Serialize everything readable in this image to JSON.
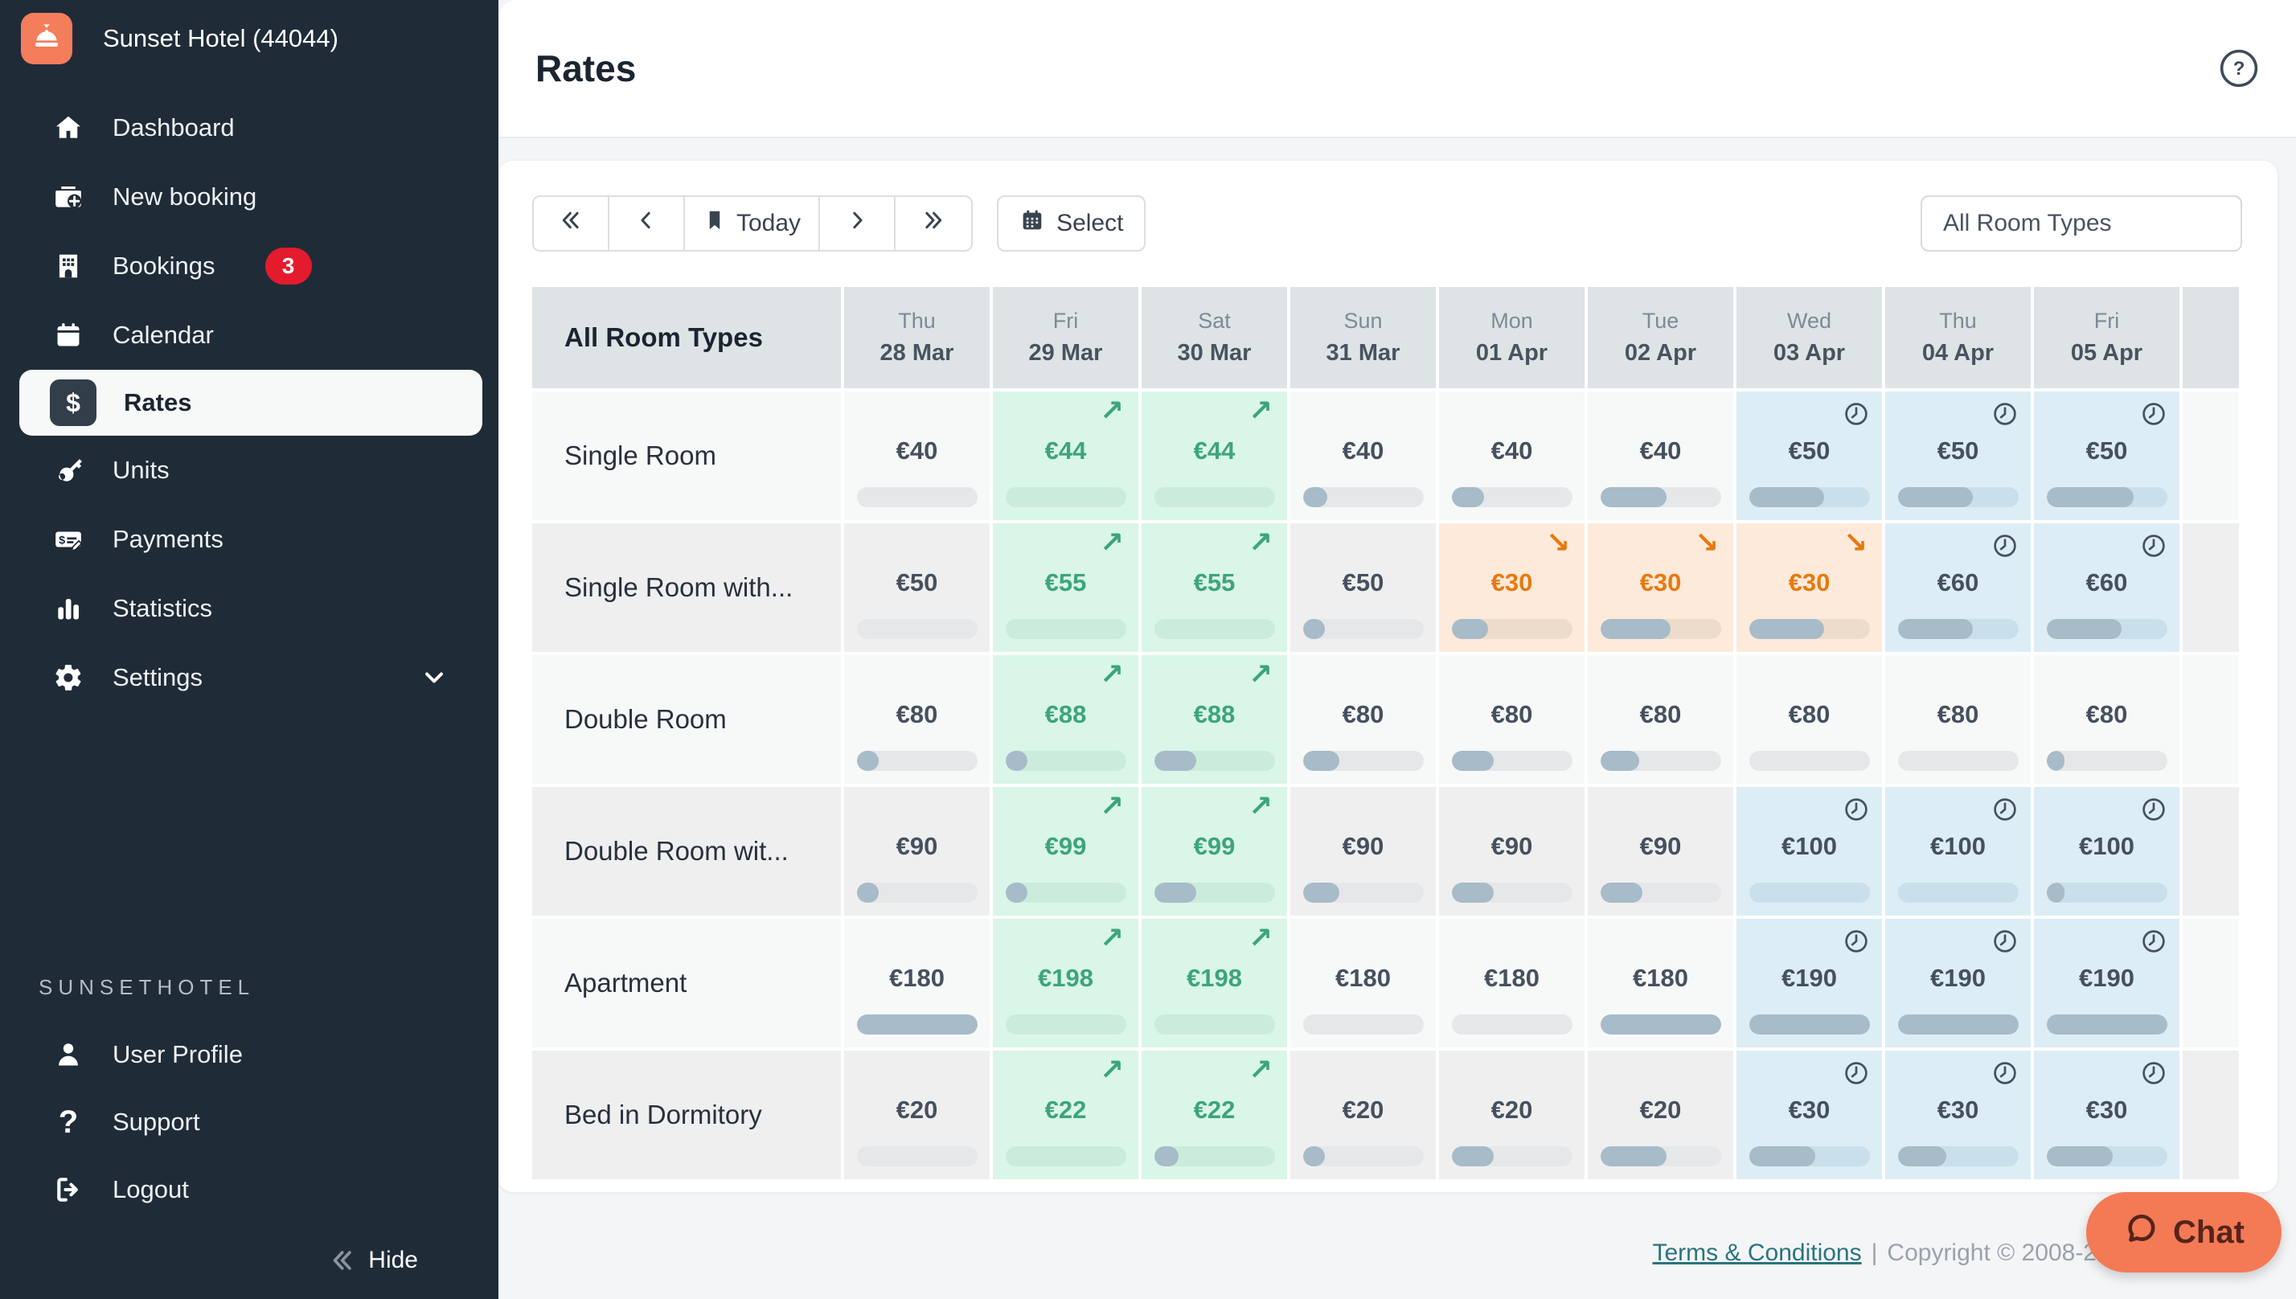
{
  "sidebar": {
    "hotel_name": "Sunset Hotel (44044)",
    "items": [
      {
        "icon": "home-icon",
        "label": "Dashboard"
      },
      {
        "icon": "new-booking-icon",
        "label": "New booking"
      },
      {
        "icon": "bookings-icon",
        "label": "Bookings",
        "badge": "3"
      },
      {
        "icon": "calendar-icon",
        "label": "Calendar"
      },
      {
        "icon": "rates-icon",
        "label": "Rates",
        "active": true
      },
      {
        "icon": "key-icon",
        "label": "Units"
      },
      {
        "icon": "payments-icon",
        "label": "Payments"
      },
      {
        "icon": "statistics-icon",
        "label": "Statistics"
      },
      {
        "icon": "gear-icon",
        "label": "Settings",
        "chevron": true
      }
    ],
    "section_label": "SUNSETHOTEL",
    "footer_items": [
      {
        "icon": "user-icon",
        "label": "User Profile"
      },
      {
        "icon": "question-icon",
        "label": "Support"
      },
      {
        "icon": "logout-icon",
        "label": "Logout"
      }
    ],
    "hide_label": "Hide"
  },
  "header": {
    "title": "Rates"
  },
  "toolbar": {
    "today_label": "Today",
    "select_label": "Select",
    "room_filter_value": "All Room Types"
  },
  "table": {
    "corner_label": "All Room Types",
    "columns": [
      {
        "day": "Thu",
        "date": "28 Mar"
      },
      {
        "day": "Fri",
        "date": "29 Mar"
      },
      {
        "day": "Sat",
        "date": "30 Mar"
      },
      {
        "day": "Sun",
        "date": "31 Mar"
      },
      {
        "day": "Mon",
        "date": "01 Apr"
      },
      {
        "day": "Tue",
        "date": "02 Apr"
      },
      {
        "day": "Wed",
        "date": "03 Apr"
      },
      {
        "day": "Thu",
        "date": "04 Apr"
      },
      {
        "day": "Fri",
        "date": "05 Apr"
      }
    ],
    "rows": [
      {
        "label": "Single Room",
        "cells": [
          {
            "price": "€40",
            "variant": "plain",
            "occupancy": 0
          },
          {
            "price": "€44",
            "variant": "up",
            "occupancy": 0
          },
          {
            "price": "€44",
            "variant": "up",
            "occupancy": 0
          },
          {
            "price": "€40",
            "variant": "plain",
            "occupancy": 20
          },
          {
            "price": "€40",
            "variant": "plain",
            "occupancy": 27
          },
          {
            "price": "€40",
            "variant": "plain",
            "occupancy": 55
          },
          {
            "price": "€50",
            "variant": "restricted",
            "occupancy": 62
          },
          {
            "price": "€50",
            "variant": "restricted",
            "occupancy": 62
          },
          {
            "price": "€50",
            "variant": "restricted",
            "occupancy": 72
          }
        ]
      },
      {
        "label": "Single Room with...",
        "cells": [
          {
            "price": "€50",
            "variant": "plain",
            "occupancy": 0
          },
          {
            "price": "€55",
            "variant": "up",
            "occupancy": 0
          },
          {
            "price": "€55",
            "variant": "up",
            "occupancy": 0
          },
          {
            "price": "€50",
            "variant": "plain",
            "occupancy": 18
          },
          {
            "price": "€30",
            "variant": "down",
            "occupancy": 30
          },
          {
            "price": "€30",
            "variant": "down",
            "occupancy": 58
          },
          {
            "price": "€30",
            "variant": "down",
            "occupancy": 62
          },
          {
            "price": "€60",
            "variant": "restricted",
            "occupancy": 62
          },
          {
            "price": "€60",
            "variant": "restricted",
            "occupancy": 62
          }
        ]
      },
      {
        "label": "Double Room",
        "cells": [
          {
            "price": "€80",
            "variant": "plain",
            "occupancy": 18
          },
          {
            "price": "€88",
            "variant": "up",
            "occupancy": 18
          },
          {
            "price": "€88",
            "variant": "up",
            "occupancy": 35
          },
          {
            "price": "€80",
            "variant": "plain",
            "occupancy": 30
          },
          {
            "price": "€80",
            "variant": "plain",
            "occupancy": 35
          },
          {
            "price": "€80",
            "variant": "plain",
            "occupancy": 32
          },
          {
            "price": "€80",
            "variant": "plain",
            "occupancy": 0
          },
          {
            "price": "€80",
            "variant": "plain",
            "occupancy": 0
          },
          {
            "price": "€80",
            "variant": "plain",
            "occupancy": 15
          }
        ]
      },
      {
        "label": "Double Room wit...",
        "cells": [
          {
            "price": "€90",
            "variant": "plain",
            "occupancy": 18
          },
          {
            "price": "€99",
            "variant": "up",
            "occupancy": 18
          },
          {
            "price": "€99",
            "variant": "up",
            "occupancy": 35
          },
          {
            "price": "€90",
            "variant": "plain",
            "occupancy": 30
          },
          {
            "price": "€90",
            "variant": "plain",
            "occupancy": 35
          },
          {
            "price": "€90",
            "variant": "plain",
            "occupancy": 35
          },
          {
            "price": "€100",
            "variant": "restricted",
            "occupancy": 0
          },
          {
            "price": "€100",
            "variant": "restricted",
            "occupancy": 0
          },
          {
            "price": "€100",
            "variant": "restricted",
            "occupancy": 15
          }
        ]
      },
      {
        "label": "Apartment",
        "cells": [
          {
            "price": "€180",
            "variant": "plain",
            "occupancy": 100
          },
          {
            "price": "€198",
            "variant": "up",
            "occupancy": 0
          },
          {
            "price": "€198",
            "variant": "up",
            "occupancy": 0
          },
          {
            "price": "€180",
            "variant": "plain",
            "occupancy": 0
          },
          {
            "price": "€180",
            "variant": "plain",
            "occupancy": 0
          },
          {
            "price": "€180",
            "variant": "plain",
            "occupancy": 100
          },
          {
            "price": "€190",
            "variant": "restricted",
            "occupancy": 100
          },
          {
            "price": "€190",
            "variant": "restricted",
            "occupancy": 100
          },
          {
            "price": "€190",
            "variant": "restricted",
            "occupancy": 100
          }
        ]
      },
      {
        "label": "Bed in Dormitory",
        "cells": [
          {
            "price": "€20",
            "variant": "plain",
            "occupancy": 0
          },
          {
            "price": "€22",
            "variant": "up",
            "occupancy": 0
          },
          {
            "price": "€22",
            "variant": "up",
            "occupancy": 20
          },
          {
            "price": "€20",
            "variant": "plain",
            "occupancy": 18
          },
          {
            "price": "€20",
            "variant": "plain",
            "occupancy": 35
          },
          {
            "price": "€20",
            "variant": "plain",
            "occupancy": 55
          },
          {
            "price": "€30",
            "variant": "restricted",
            "occupancy": 55
          },
          {
            "price": "€30",
            "variant": "restricted",
            "occupancy": 40
          },
          {
            "price": "€30",
            "variant": "restricted",
            "occupancy": 55
          }
        ]
      }
    ]
  },
  "footer": {
    "terms_label": "Terms & Conditions",
    "separator": "|",
    "copyright": "Copyright © 2008-2",
    "chat_label": "Chat"
  },
  "colors": {
    "sidebar_bg": "#202b38",
    "brand_orange": "#f47d5c",
    "badge_red": "#e31b2d",
    "rate_up_green": "#3ea47b",
    "rate_down_orange": "#e8790e",
    "cell_up_bg": "#d9f6e8",
    "cell_down_bg": "#fdeadb",
    "cell_restricted_bg": "#dcedf5",
    "occupancy_fill": "#a7bbc9",
    "link_teal": "#2a7480"
  }
}
